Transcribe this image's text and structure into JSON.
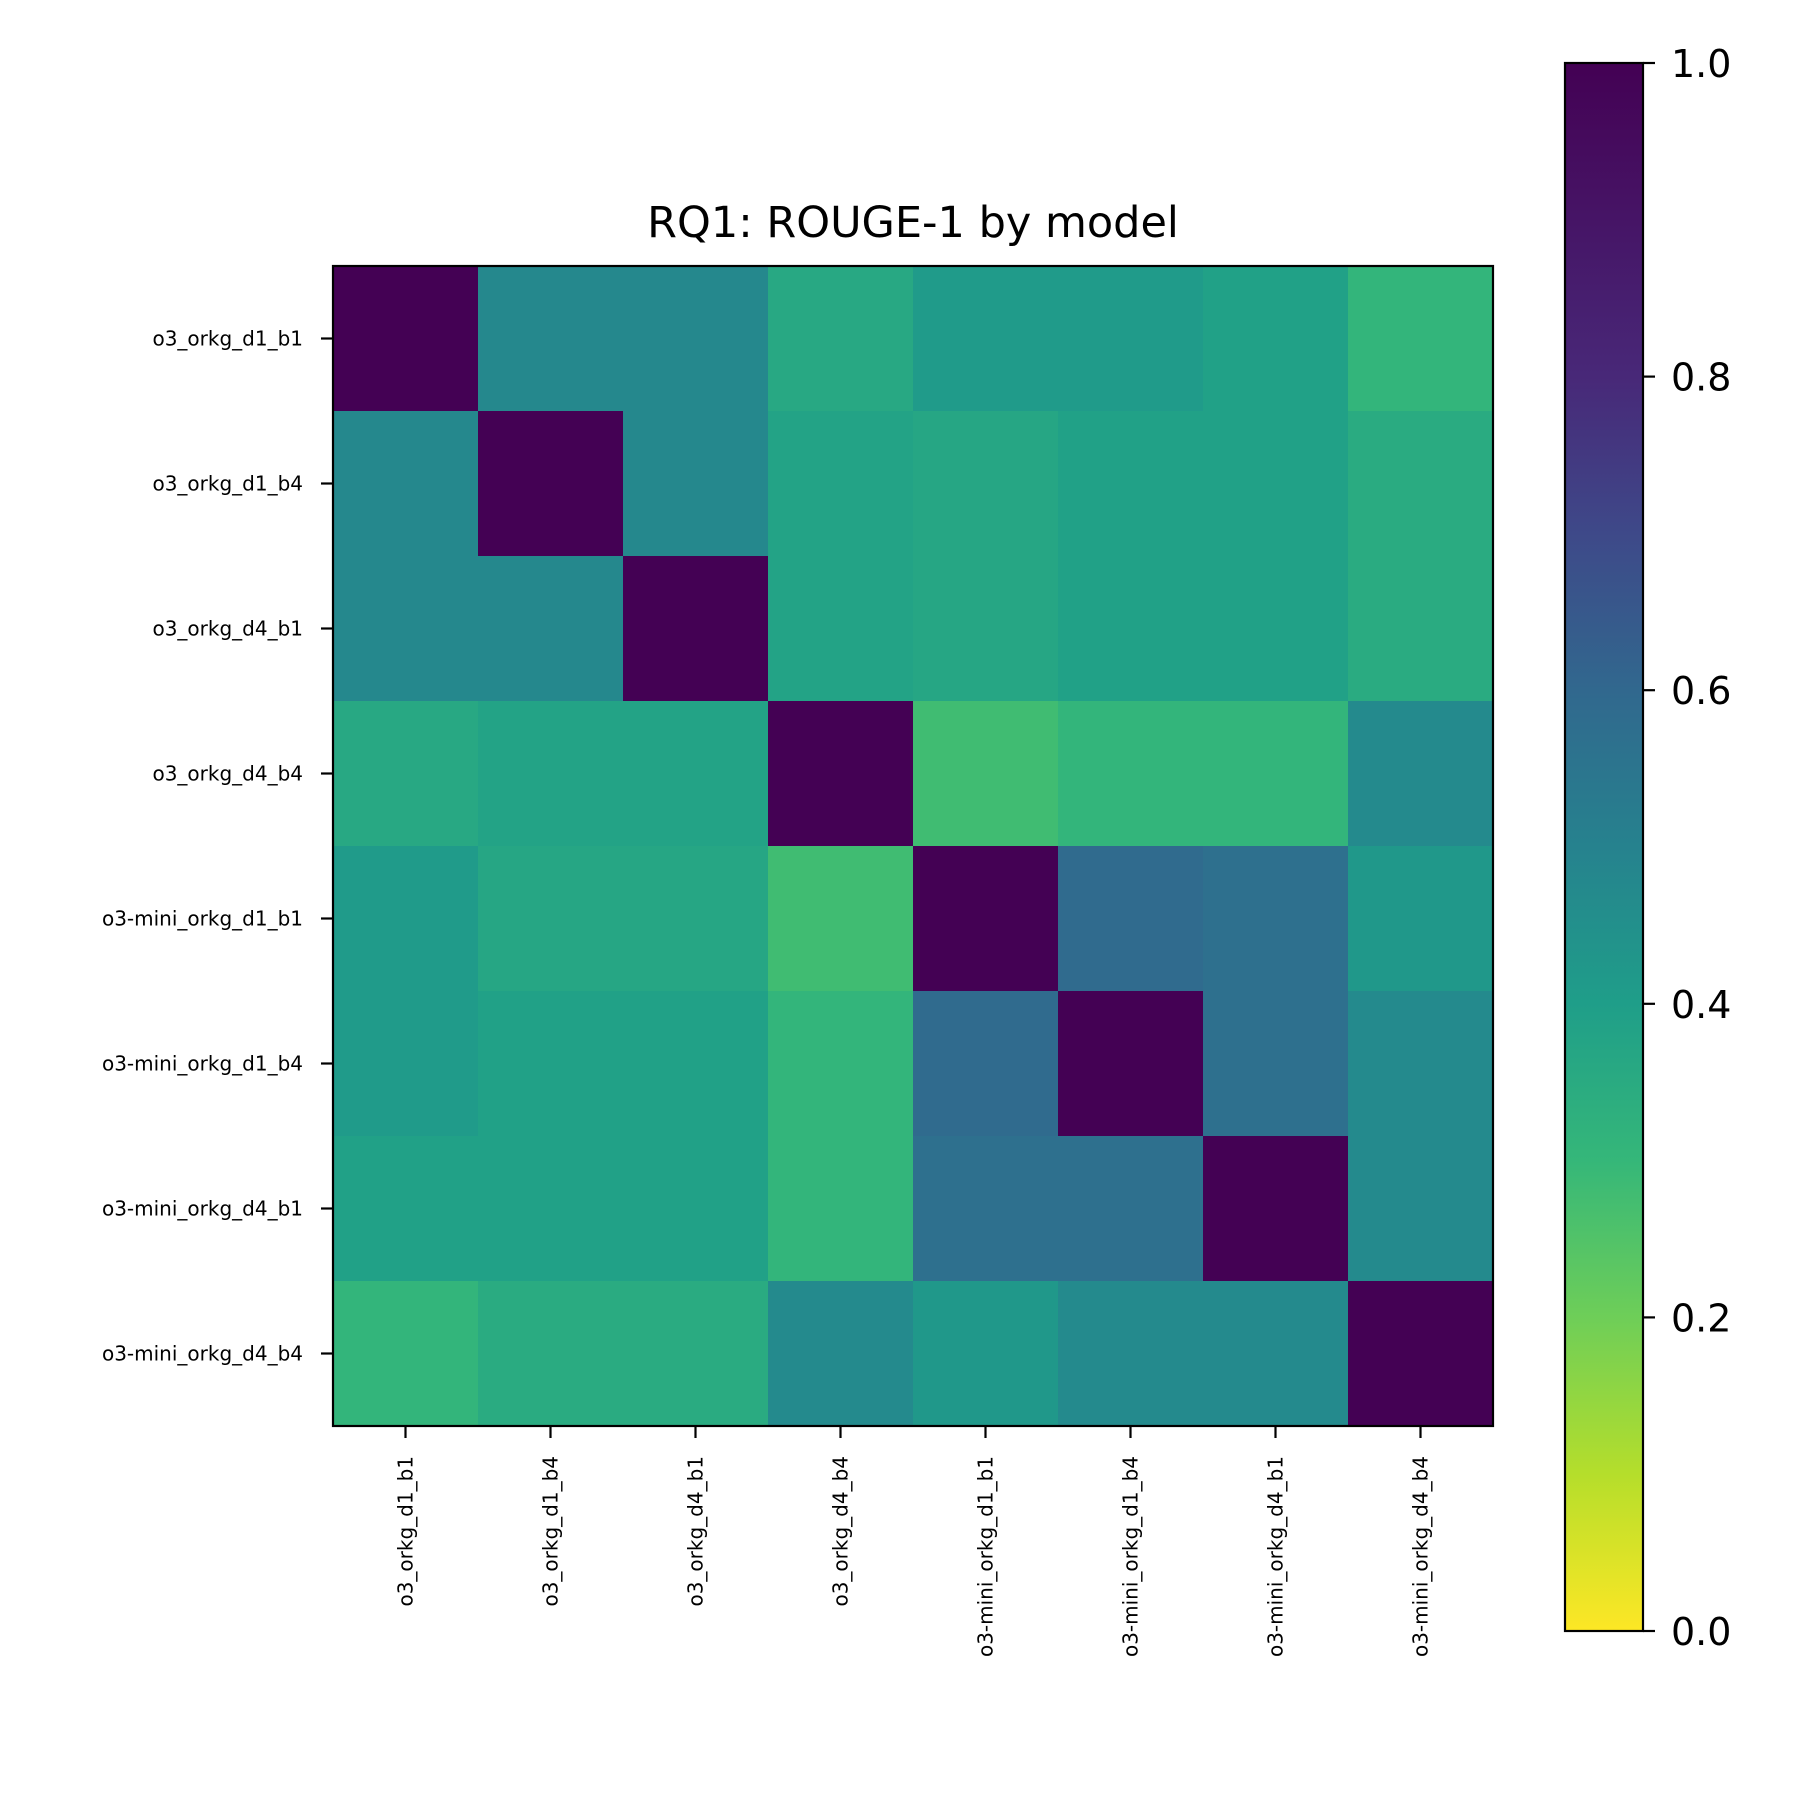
{
  "chart_data": {
    "type": "heatmap",
    "title": "RQ1: ROUGE-1 by model",
    "xlabel": "",
    "ylabel": "",
    "row_labels": [
      "o3_orkg_d1_b1",
      "o3_orkg_d1_b4",
      "o3_orkg_d4_b1",
      "o3_orkg_d4_b4",
      "o3-mini_orkg_d1_b1",
      "o3-mini_orkg_d1_b4",
      "o3-mini_orkg_d4_b1",
      "o3-mini_orkg_d4_b4"
    ],
    "col_labels": [
      "o3_orkg_d1_b1",
      "o3_orkg_d1_b4",
      "o3_orkg_d4_b1",
      "o3_orkg_d4_b4",
      "o3-mini_orkg_d1_b1",
      "o3-mini_orkg_d1_b4",
      "o3-mini_orkg_d4_b1",
      "o3-mini_orkg_d4_b4"
    ],
    "values": [
      [
        1.0,
        0.48,
        0.48,
        0.36,
        0.41,
        0.41,
        0.39,
        0.31
      ],
      [
        0.48,
        1.0,
        0.48,
        0.38,
        0.37,
        0.39,
        0.39,
        0.35
      ],
      [
        0.48,
        0.48,
        1.0,
        0.38,
        0.37,
        0.39,
        0.39,
        0.35
      ],
      [
        0.36,
        0.38,
        0.38,
        1.0,
        0.28,
        0.31,
        0.31,
        0.47
      ],
      [
        0.41,
        0.37,
        0.37,
        0.28,
        1.0,
        0.59,
        0.57,
        0.42
      ],
      [
        0.41,
        0.39,
        0.39,
        0.31,
        0.59,
        1.0,
        0.57,
        0.47
      ],
      [
        0.39,
        0.39,
        0.39,
        0.31,
        0.57,
        0.57,
        1.0,
        0.47
      ],
      [
        0.31,
        0.35,
        0.35,
        0.47,
        0.42,
        0.47,
        0.47,
        1.0
      ]
    ],
    "colorscale": "viridis_r",
    "vmin": 0.0,
    "vmax": 1.0,
    "colorbar_ticks": [
      "0.0",
      "0.2",
      "0.4",
      "0.6",
      "0.8",
      "1.0"
    ],
    "grid": false
  }
}
